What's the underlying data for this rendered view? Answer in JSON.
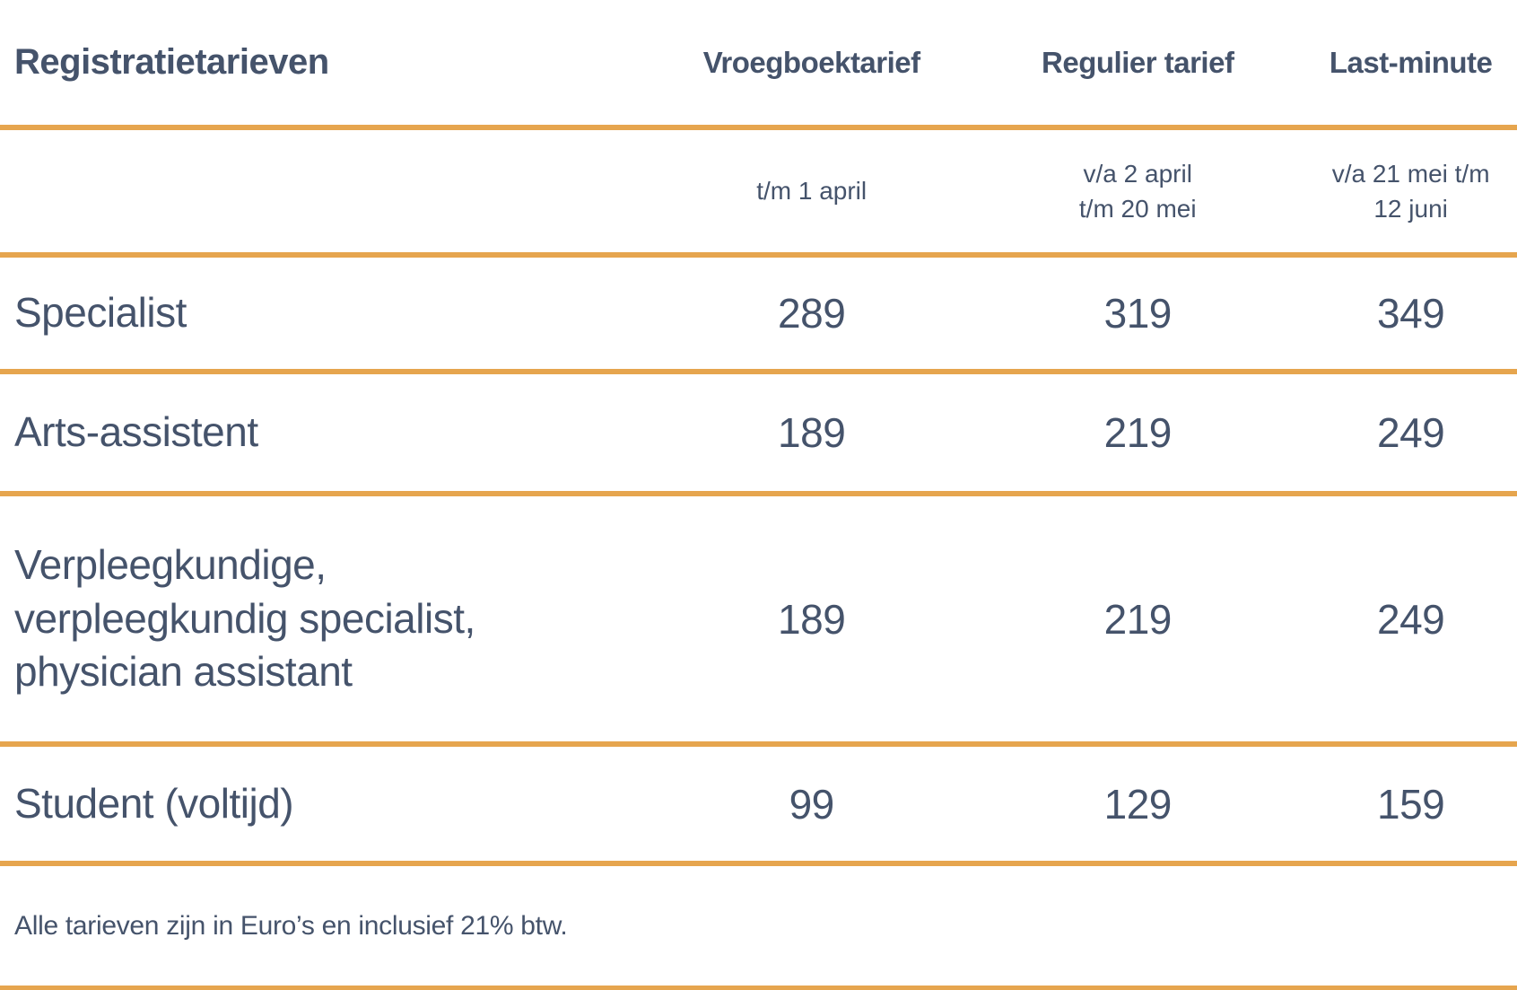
{
  "table": {
    "title": "Registratietarieven",
    "columns": [
      {
        "label": "Vroegboektarief",
        "period": "t/m 1 april"
      },
      {
        "label": "Regulier tarief",
        "period": "v/a 2 april\nt/m 20 mei"
      },
      {
        "label": "Last-minute",
        "period": "v/a 21 mei t/m\n12 juni"
      }
    ],
    "rows": [
      {
        "label": "Specialist",
        "prices": [
          "289",
          "319",
          "349"
        ]
      },
      {
        "label": "Arts-assistent",
        "prices": [
          "189",
          "219",
          "249"
        ]
      },
      {
        "label": "Verpleegkundige,\nverpleegkundig specialist,\nphysician assistant",
        "prices": [
          "189",
          "219",
          "249"
        ]
      },
      {
        "label": "Student (voltijd)",
        "prices": [
          "99",
          "129",
          "159"
        ]
      }
    ],
    "footnote": "Alle tarieven zijn in Euro’s en inclusief 21% btw.",
    "colors": {
      "accent_line": "#e6a54e",
      "text": "#45536b",
      "background": "#ffffff"
    },
    "currency_note": "Euro",
    "vat_percent": "21%"
  }
}
